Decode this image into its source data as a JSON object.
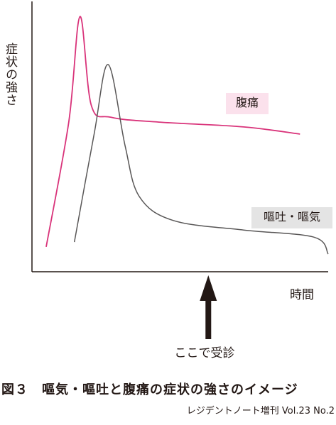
{
  "chart_data": {
    "type": "line",
    "ylabel": "症状の強さ",
    "xlabel": "時間",
    "axis_ticks": "none",
    "grid": false,
    "series": [
      {
        "name": "腹痛",
        "color": "#d9337a",
        "points": [
          [
            0,
            0.03
          ],
          [
            0.08,
            0.55
          ],
          [
            0.12,
            0.99
          ],
          [
            0.16,
            0.62
          ],
          [
            0.23,
            0.57
          ],
          [
            0.4,
            0.55
          ],
          [
            0.7,
            0.53
          ],
          [
            0.9,
            0.5
          ]
        ]
      },
      {
        "name": "嘔吐・嘔気",
        "color": "#595757",
        "points": [
          [
            0.1,
            0.05
          ],
          [
            0.17,
            0.5
          ],
          [
            0.22,
            0.79
          ],
          [
            0.28,
            0.45
          ],
          [
            0.33,
            0.24
          ],
          [
            0.45,
            0.14
          ],
          [
            0.7,
            0.1
          ],
          [
            0.95,
            0.07
          ],
          [
            1.0,
            0.0
          ]
        ]
      }
    ]
  },
  "annotation": {
    "arrow_label": "ここで受診",
    "arrow_x": 0.575
  },
  "caption": "図３　嘔気・嘔吐と腹痛の症状の強さのイメージ",
  "source": "レジデントノート増刊 Vol.23 No.2"
}
